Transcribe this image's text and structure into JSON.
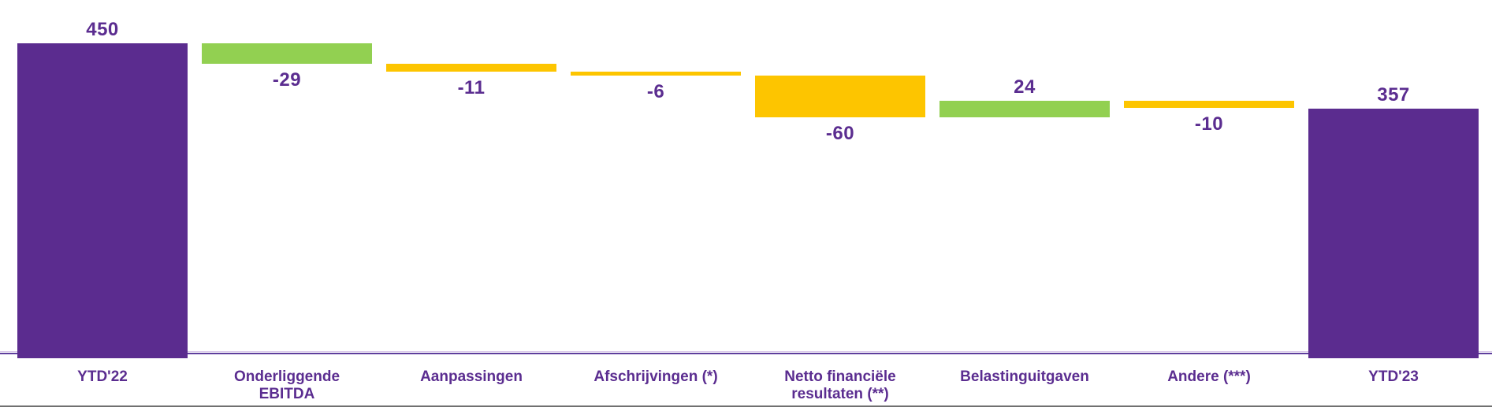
{
  "chart_data": {
    "type": "bar",
    "subtype": "waterfall",
    "ylim": [
      0,
      450
    ],
    "grid": false,
    "legend": false,
    "colors": {
      "purple": "#5B2C8F",
      "green": "#92D051",
      "yellow": "#FDC500",
      "label_text": "#5B2D90",
      "axis_line_light": "#D9C7EA",
      "axis_line_dark": "#5E3D9D",
      "divider": "#707070"
    },
    "items": [
      {
        "id": "ytd22",
        "label": "YTD'22",
        "value": 450,
        "value_label": "450",
        "kind": "total",
        "color_key": "purple"
      },
      {
        "id": "onderliggende-ebitda",
        "label": "Onderliggende\nEBITDA",
        "value": -29,
        "value_label": "-29",
        "kind": "delta",
        "color_key": "green"
      },
      {
        "id": "aanpassingen",
        "label": "Aanpassingen",
        "value": -11,
        "value_label": "-11",
        "kind": "delta",
        "color_key": "yellow"
      },
      {
        "id": "afschrijvingen",
        "label": "Afschrijvingen (*)",
        "value": -6,
        "value_label": "-6",
        "kind": "delta",
        "color_key": "yellow"
      },
      {
        "id": "netto-financiele-resultaten",
        "label": "Netto financiële\nresultaten (**)",
        "value": -60,
        "value_label": "-60",
        "kind": "delta",
        "color_key": "yellow"
      },
      {
        "id": "belastinguitgaven",
        "label": "Belastinguitgaven",
        "value": 24,
        "value_label": "24",
        "kind": "delta",
        "color_key": "green"
      },
      {
        "id": "andere",
        "label": "Andere (***)",
        "value": -10,
        "value_label": "-10",
        "kind": "delta",
        "color_key": "yellow"
      },
      {
        "id": "ytd23",
        "label": "YTD'23",
        "value": 357,
        "value_label": "357",
        "kind": "total",
        "color_key": "purple"
      }
    ]
  }
}
